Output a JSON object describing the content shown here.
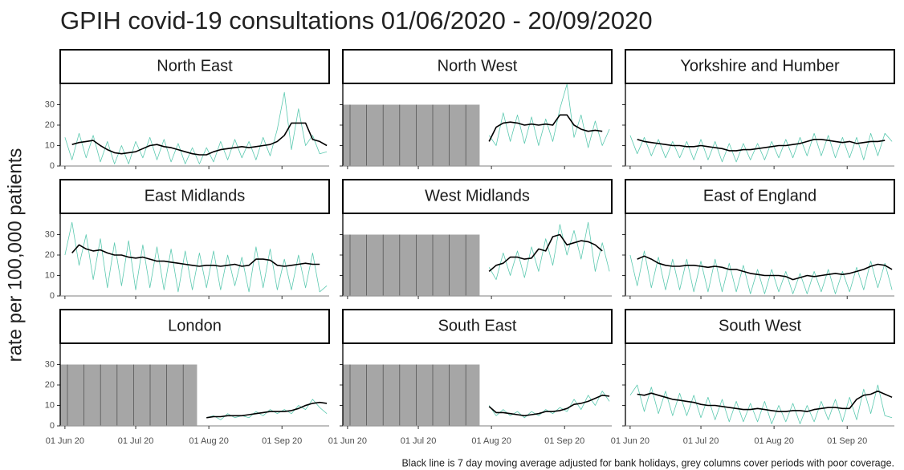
{
  "chart_data": {
    "type": "line",
    "title": "GPIH covid-19 consultations 01/06/2020 - 20/09/2020",
    "y_label": "rate per 100,000 patients",
    "caption": "Black line is 7 day moving average adjusted for bank holidays, grey columns cover periods with poor coverage.",
    "x": [
      "2020-06-01",
      "2020-06-04",
      "2020-06-07",
      "2020-06-10",
      "2020-06-13",
      "2020-06-16",
      "2020-06-19",
      "2020-06-22",
      "2020-06-25",
      "2020-06-28",
      "2020-07-01",
      "2020-07-04",
      "2020-07-07",
      "2020-07-10",
      "2020-07-13",
      "2020-07-16",
      "2020-07-19",
      "2020-07-22",
      "2020-07-25",
      "2020-07-28",
      "2020-07-31",
      "2020-08-03",
      "2020-08-06",
      "2020-08-09",
      "2020-08-12",
      "2020-08-15",
      "2020-08-18",
      "2020-08-21",
      "2020-08-24",
      "2020-08-27",
      "2020-08-30",
      "2020-09-02",
      "2020-09-05",
      "2020-09-08",
      "2020-09-11",
      "2020-09-14",
      "2020-09-17",
      "2020-09-20"
    ],
    "xlim": [
      "2020-05-30",
      "2020-09-21"
    ],
    "xticks": [
      {
        "value": "2020-06-01",
        "label": "01 Jun 20"
      },
      {
        "value": "2020-07-01",
        "label": "01 Jul 20"
      },
      {
        "value": "2020-08-01",
        "label": "01 Aug 20"
      },
      {
        "value": "2020-09-01",
        "label": "01 Sep 20"
      }
    ],
    "ylim": [
      0,
      40
    ],
    "yticks": [
      0,
      10,
      20,
      30
    ],
    "poor_coverage_color": "#a6a6a6",
    "panels": [
      {
        "title": "North East",
        "series": [
          {
            "color": "#5cc9b0",
            "values": [
              14,
              3,
              16,
              4,
              15,
              2,
              12,
              1,
              10,
              1,
              12,
              4,
              14,
              3,
              13,
              2,
              11,
              1,
              9,
              1,
              9,
              2,
              12,
              3,
              13,
              4,
              12,
              3,
              14,
              5,
              18,
              36,
              8,
              28,
              10,
              15,
              6,
              7
            ]
          },
          {
            "color": "#000000",
            "values": [
              null,
              10.5,
              11.5,
              12,
              12.5,
              10,
              8,
              6.5,
              6,
              6.5,
              7,
              8.5,
              10,
              10.5,
              9.5,
              9,
              8,
              7,
              6,
              5.5,
              5.5,
              7,
              8,
              8.5,
              9,
              9.5,
              9,
              9.5,
              10,
              10.5,
              12,
              15,
              21,
              21,
              21,
              13,
              12,
              10
            ]
          }
        ]
      },
      {
        "title": "North West",
        "poor_coverage": {
          "from": "2020-05-30",
          "to": "2020-07-27",
          "height": 30
        },
        "series": [
          {
            "color": "#5cc9b0",
            "values": [
              null,
              null,
              null,
              null,
              null,
              null,
              null,
              null,
              null,
              null,
              null,
              null,
              null,
              null,
              null,
              null,
              null,
              null,
              null,
              null,
              15,
              10,
              26,
              12,
              25,
              11,
              24,
              10,
              23,
              12,
              28,
              40,
              14,
              25,
              9,
              22,
              10,
              18
            ]
          },
          {
            "color": "#000000",
            "values": [
              null,
              null,
              null,
              null,
              null,
              null,
              null,
              null,
              null,
              null,
              null,
              null,
              null,
              null,
              null,
              null,
              null,
              null,
              null,
              null,
              12,
              19,
              21,
              21.5,
              21,
              20,
              20.5,
              20,
              20.5,
              20,
              25,
              25,
              20,
              18,
              17,
              17.5,
              17,
              null
            ]
          }
        ]
      },
      {
        "title": "Yorkshire and Humber",
        "series": [
          {
            "color": "#5cc9b0",
            "values": [
              15,
              6,
              14,
              5,
              13,
              4,
              12,
              4,
              12,
              3,
              13,
              3,
              12,
              2,
              11,
              2,
              11,
              3,
              11,
              3,
              12,
              4,
              13,
              4,
              14,
              5,
              16,
              5,
              15,
              4,
              14,
              4,
              14,
              3,
              16,
              5,
              16,
              12
            ]
          },
          {
            "color": "#000000",
            "values": [
              null,
              13,
              12,
              11.5,
              11,
              10.5,
              10,
              10,
              9.5,
              9.5,
              10,
              9.5,
              9,
              8.5,
              7.5,
              7.5,
              8,
              8,
              8.5,
              9,
              9.5,
              10,
              10,
              10.5,
              11,
              12,
              13,
              13,
              12.5,
              12,
              11.5,
              12,
              11,
              11.5,
              12,
              12,
              12.5,
              null
            ]
          }
        ]
      },
      {
        "title": "East Midlands",
        "series": [
          {
            "color": "#5cc9b0",
            "values": [
              20,
              36,
              15,
              30,
              8,
              28,
              4,
              26,
              5,
              27,
              3,
              25,
              4,
              24,
              3,
              23,
              2,
              22,
              3,
              21,
              4,
              22,
              3,
              20,
              5,
              19,
              2,
              24,
              4,
              23,
              3,
              18,
              3,
              20,
              4,
              21,
              2,
              5
            ]
          },
          {
            "color": "#000000",
            "values": [
              null,
              21,
              25,
              23,
              22,
              22.5,
              21,
              20,
              20,
              19,
              18.5,
              19,
              18,
              17,
              17,
              16.5,
              16,
              15.5,
              15,
              14.5,
              15,
              15,
              14.5,
              15,
              15.5,
              14.5,
              15,
              18,
              18,
              17.5,
              15,
              14.5,
              15,
              15.5,
              16,
              15.5,
              15.5,
              null
            ]
          }
        ]
      },
      {
        "title": "West Midlands",
        "poor_coverage": {
          "from": "2020-05-30",
          "to": "2020-07-27",
          "height": 30
        },
        "series": [
          {
            "color": "#5cc9b0",
            "values": [
              null,
              null,
              null,
              null,
              null,
              null,
              null,
              null,
              null,
              null,
              null,
              null,
              null,
              null,
              null,
              null,
              null,
              null,
              null,
              null,
              14,
              8,
              21,
              10,
              22,
              9,
              24,
              12,
              28,
              15,
              35,
              20,
              32,
              18,
              36,
              12,
              26,
              12
            ]
          },
          {
            "color": "#000000",
            "values": [
              null,
              null,
              null,
              null,
              null,
              null,
              null,
              null,
              null,
              null,
              null,
              null,
              null,
              null,
              null,
              null,
              null,
              null,
              null,
              null,
              12,
              15,
              16,
              19,
              19,
              18,
              18.5,
              23,
              22,
              29,
              30,
              25,
              26,
              27,
              26.5,
              25,
              22,
              null
            ]
          }
        ]
      },
      {
        "title": "East of England",
        "series": [
          {
            "color": "#5cc9b0",
            "values": [
              20,
              5,
              22,
              4,
              19,
              3,
              18,
              3,
              18,
              2,
              17,
              2,
              18,
              2,
              16,
              2,
              15,
              1,
              13,
              1,
              13,
              2,
              12,
              1,
              11,
              1,
              12,
              2,
              13,
              1,
              12,
              2,
              14,
              3,
              17,
              4,
              16,
              3
            ]
          },
          {
            "color": "#000000",
            "values": [
              null,
              18,
              19.5,
              18,
              16,
              15,
              14.5,
              14.5,
              15,
              15,
              14.5,
              14,
              14.5,
              14,
              13,
              13,
              12,
              11,
              10.5,
              10,
              10,
              10,
              9.5,
              8,
              9,
              10,
              9.5,
              10,
              10.5,
              11,
              10.5,
              11,
              12,
              13,
              14.5,
              15.5,
              15,
              13
            ]
          }
        ]
      },
      {
        "title": "London",
        "poor_coverage": {
          "from": "2020-05-30",
          "to": "2020-07-27",
          "height": 30
        },
        "series": [
          {
            "color": "#5cc9b0",
            "values": [
              null,
              null,
              null,
              null,
              null,
              null,
              null,
              null,
              null,
              null,
              null,
              null,
              null,
              null,
              null,
              null,
              null,
              null,
              null,
              null,
              4,
              5,
              3,
              6,
              4,
              5,
              4,
              7,
              5,
              8,
              6,
              8,
              6,
              10,
              8,
              13,
              9,
              6
            ]
          },
          {
            "color": "#000000",
            "values": [
              null,
              null,
              null,
              null,
              null,
              null,
              null,
              null,
              null,
              null,
              null,
              null,
              null,
              null,
              null,
              null,
              null,
              null,
              null,
              null,
              4,
              4.5,
              4.5,
              5,
              5,
              5,
              5.5,
              6,
              6.5,
              7,
              7,
              7,
              7.5,
              8.5,
              10,
              11,
              11.5,
              11
            ]
          }
        ]
      },
      {
        "title": "South East",
        "poor_coverage": {
          "from": "2020-05-30",
          "to": "2020-07-27",
          "height": 30
        },
        "series": [
          {
            "color": "#5cc9b0",
            "values": [
              null,
              null,
              null,
              null,
              null,
              null,
              null,
              null,
              null,
              null,
              null,
              null,
              null,
              null,
              null,
              null,
              null,
              null,
              null,
              null,
              10,
              5,
              8,
              5,
              7,
              4,
              7,
              5,
              8,
              6,
              9,
              7,
              13,
              8,
              15,
              10,
              17,
              12
            ]
          },
          {
            "color": "#000000",
            "values": [
              null,
              null,
              null,
              null,
              null,
              null,
              null,
              null,
              null,
              null,
              null,
              null,
              null,
              null,
              null,
              null,
              null,
              null,
              null,
              null,
              9.5,
              6.5,
              6.5,
              6,
              5.5,
              5,
              5.5,
              6,
              7,
              7,
              7.5,
              8.5,
              10.5,
              11,
              12,
              13.5,
              15,
              14.5
            ]
          }
        ]
      },
      {
        "title": "South West",
        "series": [
          {
            "color": "#5cc9b0",
            "values": [
              15,
              20,
              7,
              19,
              6,
              17,
              5,
              16,
              5,
              15,
              4,
              14,
              3,
              13,
              2,
              12,
              2,
              11,
              2,
              12,
              1,
              10,
              2,
              11,
              1,
              10,
              2,
              12,
              3,
              13,
              2,
              14,
              3,
              18,
              6,
              20,
              5,
              4
            ]
          },
          {
            "color": "#000000",
            "values": [
              null,
              15.5,
              15,
              16,
              15,
              14,
              13,
              12.5,
              12,
              11.5,
              10.5,
              10,
              10,
              9.5,
              9,
              8.5,
              8,
              8,
              8.5,
              8,
              7.5,
              7,
              7,
              7.5,
              7.5,
              7,
              8,
              8.5,
              9,
              9,
              8.5,
              8.5,
              13,
              15,
              15.5,
              17,
              15.5,
              14
            ]
          }
        ]
      }
    ]
  }
}
